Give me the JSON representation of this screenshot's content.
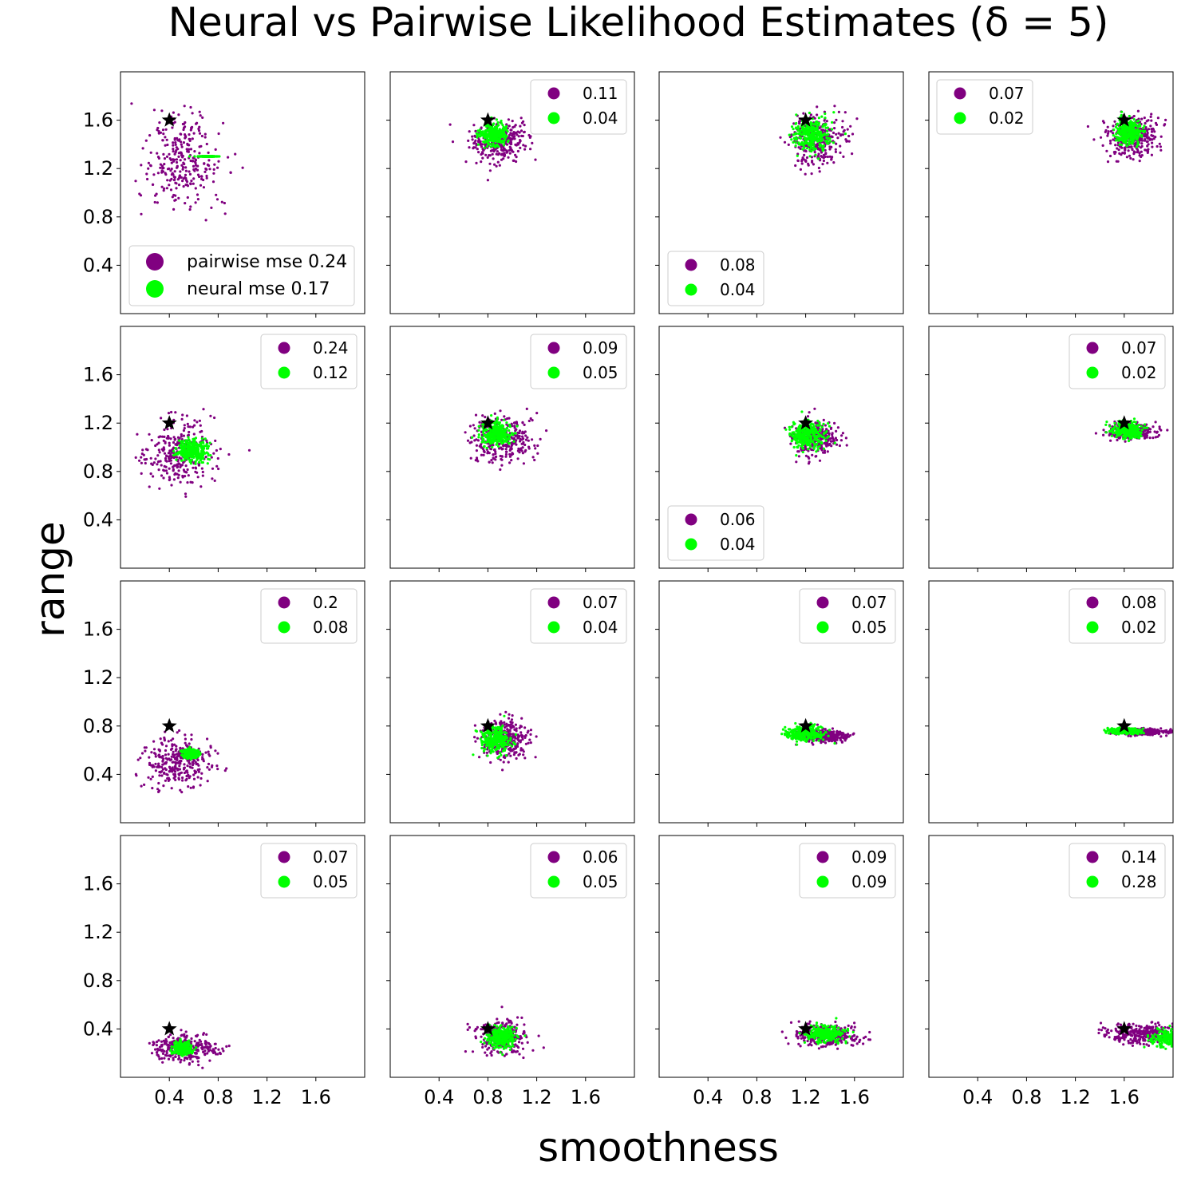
{
  "figure": {
    "title": "Neural vs Pairwise Likelihood Estimates (δ = 5)",
    "xlabel": "smoothness",
    "ylabel": "range"
  },
  "chart_data": {
    "type": "scatter",
    "grid_rows": 4,
    "grid_cols": 4,
    "grid": false,
    "xlim": [
      0,
      2.0
    ],
    "ylim": [
      0,
      2.0
    ],
    "xticks": [
      0.4,
      0.8,
      1.2,
      1.6
    ],
    "yticks": [
      0.4,
      0.8,
      1.2,
      1.6
    ],
    "xtick_labels": [
      "0.4",
      "0.8",
      "1.2",
      "1.6"
    ],
    "ytick_labels": [
      "0.4",
      "0.8",
      "1.2",
      "1.6"
    ],
    "series_styles": [
      {
        "key": "pairwise",
        "color": "#800080"
      },
      {
        "key": "neural",
        "color": "#00ff00"
      }
    ],
    "true_marker": {
      "shape": "star",
      "color": "#000000"
    },
    "panels": [
      {
        "row": 0,
        "col": 0,
        "true_smoothness": 0.4,
        "true_range": 1.6,
        "legend": [
          "pairwise mse 0.24",
          "neural mse 0.17"
        ],
        "legend_loc": "lower-left",
        "p_sx": [
          0.26,
          0.09
        ],
        "p_sy": [
          0.33,
          0.32
        ],
        "n_sx": [
          0.06,
          0.31
        ],
        "n_sy": [
          0.0,
          0.3
        ]
      },
      {
        "row": 0,
        "col": 1,
        "true_smoothness": 0.8,
        "true_range": 1.6,
        "legend": [
          "0.11",
          "0.04"
        ],
        "legend_loc": "upper-right",
        "p_sx": [
          0.2,
          0.09
        ],
        "p_sy": [
          0.14,
          0.18
        ],
        "n_sx": [
          0.09,
          0.05
        ],
        "n_sy": [
          0.07,
          0.12
        ]
      },
      {
        "row": 0,
        "col": 2,
        "true_smoothness": 1.2,
        "true_range": 1.6,
        "legend": [
          "0.08",
          "0.04"
        ],
        "legend_loc": "lower-left",
        "p_sx": [
          0.17,
          0.1
        ],
        "p_sy": [
          0.18,
          0.16
        ],
        "n_sx": [
          0.12,
          0.05
        ],
        "n_sy": [
          0.11,
          0.12
        ]
      },
      {
        "row": 0,
        "col": 3,
        "true_smoothness": 1.6,
        "true_range": 1.6,
        "legend": [
          "0.07",
          "0.02"
        ],
        "legend_loc": "upper-left",
        "p_sx": [
          0.18,
          0.07
        ],
        "p_sy": [
          0.15,
          0.14
        ],
        "n_sx": [
          0.09,
          0.04
        ],
        "n_sy": [
          0.08,
          0.09
        ]
      },
      {
        "row": 1,
        "col": 0,
        "true_smoothness": 0.4,
        "true_range": 1.2,
        "legend": [
          "0.24",
          "0.12"
        ],
        "legend_loc": "upper-right",
        "p_sx": [
          0.22,
          0.09
        ],
        "p_sy": [
          0.21,
          0.26
        ],
        "n_sx": [
          0.11,
          0.19
        ],
        "n_sy": [
          0.07,
          0.23
        ]
      },
      {
        "row": 1,
        "col": 1,
        "true_smoothness": 0.8,
        "true_range": 1.2,
        "legend": [
          "0.09",
          "0.05"
        ],
        "legend_loc": "upper-right",
        "p_sx": [
          0.21,
          0.11
        ],
        "p_sy": [
          0.15,
          0.14
        ],
        "n_sx": [
          0.1,
          0.07
        ],
        "n_sy": [
          0.09,
          0.09
        ]
      },
      {
        "row": 1,
        "col": 2,
        "true_smoothness": 1.2,
        "true_range": 1.2,
        "legend": [
          "0.06",
          "0.04"
        ],
        "legend_loc": "lower-left",
        "p_sx": [
          0.15,
          0.07
        ],
        "p_sy": [
          0.12,
          0.12
        ],
        "n_sx": [
          0.12,
          0.01
        ],
        "n_sy": [
          0.09,
          0.1
        ]
      },
      {
        "row": 1,
        "col": 3,
        "true_smoothness": 1.6,
        "true_range": 1.2,
        "legend": [
          "0.07",
          "0.02"
        ],
        "legend_loc": "upper-right",
        "p_sx": [
          0.17,
          0.06
        ],
        "p_sy": [
          0.05,
          0.07
        ],
        "n_sx": [
          0.1,
          0.02
        ],
        "n_sy": [
          0.05,
          0.06
        ]
      },
      {
        "row": 2,
        "col": 0,
        "true_smoothness": 0.4,
        "true_range": 0.8,
        "legend": [
          "0.2",
          "0.08"
        ],
        "legend_loc": "upper-right",
        "p_sx": [
          0.23,
          0.08
        ],
        "p_sy": [
          0.17,
          0.3
        ],
        "n_sx": [
          0.05,
          0.18
        ],
        "n_sy": [
          0.03,
          0.23
        ]
      },
      {
        "row": 2,
        "col": 1,
        "true_smoothness": 0.8,
        "true_range": 0.8,
        "legend": [
          "0.07",
          "0.04"
        ],
        "legend_loc": "upper-right",
        "p_sx": [
          0.16,
          0.15
        ],
        "p_sy": [
          0.13,
          0.1
        ],
        "n_sx": [
          0.1,
          0.06
        ],
        "n_sy": [
          0.09,
          0.11
        ]
      },
      {
        "row": 2,
        "col": 2,
        "true_smoothness": 1.2,
        "true_range": 0.8,
        "legend": [
          "0.07",
          "0.05"
        ],
        "legend_loc": "upper-right",
        "p_sx": [
          0.17,
          0.15
        ],
        "p_sy": [
          0.04,
          0.08
        ],
        "n_sx": [
          0.12,
          0.0
        ],
        "n_sy": [
          0.05,
          0.06
        ]
      },
      {
        "row": 2,
        "col": 3,
        "true_smoothness": 1.6,
        "true_range": 0.8,
        "legend": [
          "0.08",
          "0.02"
        ],
        "legend_loc": "upper-right",
        "p_sx": [
          0.17,
          0.15
        ],
        "p_sy": [
          0.02,
          0.05
        ],
        "n_sx": [
          0.1,
          0.0
        ],
        "n_sy": [
          0.02,
          0.04
        ]
      },
      {
        "row": 3,
        "col": 0,
        "true_smoothness": 0.4,
        "true_range": 0.4,
        "legend": [
          "0.07",
          "0.05"
        ],
        "legend_loc": "upper-right",
        "p_sx": [
          0.21,
          0.13
        ],
        "p_sy": [
          0.09,
          0.16
        ],
        "n_sx": [
          0.07,
          0.1
        ],
        "n_sy": [
          0.04,
          0.16
        ]
      },
      {
        "row": 3,
        "col": 1,
        "true_smoothness": 0.8,
        "true_range": 0.4,
        "legend": [
          "0.06",
          "0.05"
        ],
        "legend_loc": "upper-right",
        "p_sx": [
          0.17,
          0.12
        ],
        "p_sy": [
          0.11,
          0.07
        ],
        "n_sx": [
          0.09,
          0.11
        ],
        "n_sy": [
          0.07,
          0.07
        ]
      },
      {
        "row": 3,
        "col": 2,
        "true_smoothness": 1.2,
        "true_range": 0.4,
        "legend": [
          "0.09",
          "0.09"
        ],
        "legend_loc": "upper-right",
        "p_sx": [
          0.22,
          0.17
        ],
        "p_sy": [
          0.08,
          0.05
        ],
        "n_sx": [
          0.12,
          0.16
        ],
        "n_sy": [
          0.05,
          0.04
        ]
      },
      {
        "row": 3,
        "col": 3,
        "true_smoothness": 1.6,
        "true_range": 0.4,
        "legend": [
          "0.14",
          "0.28"
        ],
        "legend_loc": "upper-right",
        "p_sx": [
          0.24,
          0.14
        ],
        "p_sy": [
          0.07,
          0.04
        ],
        "n_sx": [
          0.15,
          0.39
        ],
        "n_sy": [
          0.06,
          0.08
        ]
      }
    ]
  }
}
